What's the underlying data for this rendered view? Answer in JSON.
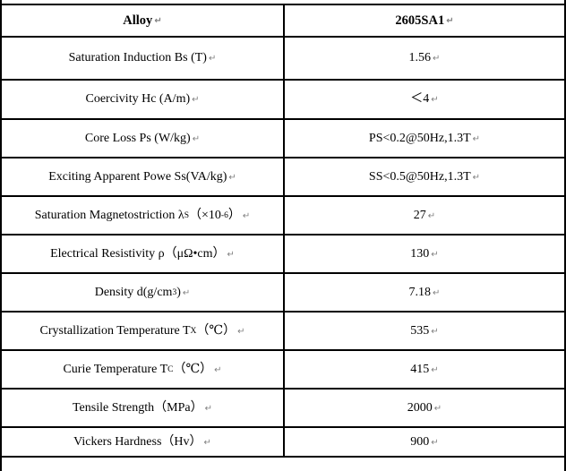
{
  "marks": {
    "paragraph_mark": "↵"
  },
  "colors": {
    "border": "#000000",
    "background": "#ffffff",
    "text": "#000000",
    "formatting_mark": "#808080"
  },
  "table": {
    "header": {
      "label": "Alloy",
      "value": "2605SA1"
    },
    "rows": [
      {
        "label": [
          {
            "t": "Saturation Induction Bs (T)"
          }
        ],
        "value": "1.56"
      },
      {
        "label": [
          {
            "t": "Coercivity Hc (A/m)"
          }
        ],
        "value": "＜4"
      },
      {
        "label": [
          {
            "t": "Core Loss Ps (W/kg)"
          }
        ],
        "value": "PS<0.2@50Hz,1.3T"
      },
      {
        "label": [
          {
            "t": "Exciting Apparent Powe Ss(VA/kg)"
          }
        ],
        "value": "SS<0.5@50Hz,1.3T"
      },
      {
        "label": [
          {
            "t": "Saturation Magnetostriction λ"
          },
          {
            "sub": "S"
          },
          {
            "t": "（×10"
          },
          {
            "sup": "-6"
          },
          {
            "t": "）"
          }
        ],
        "value": "27"
      },
      {
        "label": [
          {
            "t": "Electrical Resistivity ρ（μΩ•cm）"
          }
        ],
        "value": "130"
      },
      {
        "label": [
          {
            "t": "Density d(g/cm"
          },
          {
            "sup": "3"
          },
          {
            "t": ")"
          }
        ],
        "value": "7.18"
      },
      {
        "label": [
          {
            "t": "Crystallization Temperature T"
          },
          {
            "sub": "X"
          },
          {
            "t": "（℃）"
          }
        ],
        "value": "535"
      },
      {
        "label": [
          {
            "t": "Curie Temperature T"
          },
          {
            "sub": "C"
          },
          {
            "t": "（℃）"
          }
        ],
        "value": "415"
      },
      {
        "label": [
          {
            "t": "Tensile Strength（MPa）"
          }
        ],
        "value": "2000"
      },
      {
        "label": [
          {
            "t": "Vickers Hardness（Hv）"
          }
        ],
        "value": "900"
      }
    ]
  }
}
